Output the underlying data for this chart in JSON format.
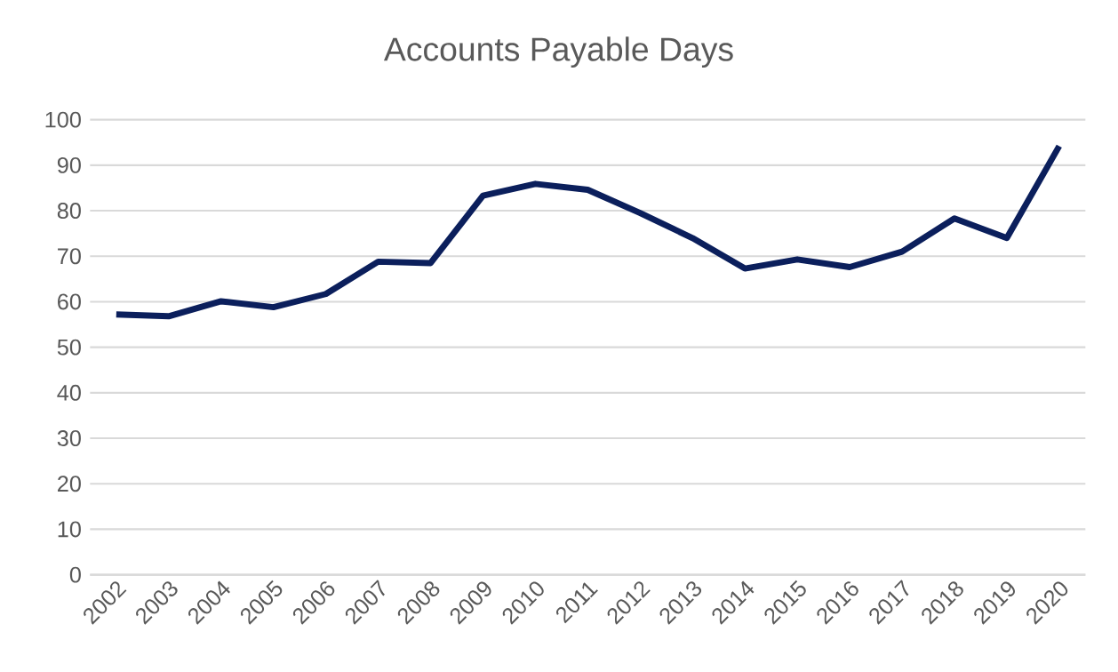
{
  "chart_data": {
    "type": "line",
    "title": "Accounts Payable Days",
    "categories": [
      "2002",
      "2003",
      "2004",
      "2005",
      "2006",
      "2007",
      "2008",
      "2009",
      "2010",
      "2011",
      "2012",
      "2013",
      "2014",
      "2015",
      "2016",
      "2017",
      "2018",
      "2019",
      "2020"
    ],
    "series": [
      {
        "color": "#0b1f5c",
        "values": [
          57.2,
          56.8,
          60.1,
          58.8,
          61.7,
          68.8,
          68.5,
          83.3,
          85.9,
          84.6,
          79.5,
          74,
          67.3,
          69.3,
          67.6,
          71,
          78.3,
          74,
          94.2
        ]
      }
    ],
    "ylim": [
      0,
      100
    ],
    "yticks": [
      0,
      10,
      20,
      30,
      40,
      50,
      60,
      70,
      80,
      90,
      100
    ],
    "grid": "y"
  }
}
